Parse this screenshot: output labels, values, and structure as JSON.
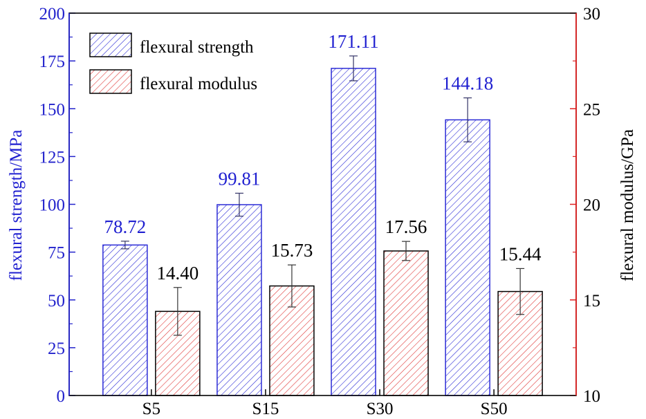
{
  "colors": {
    "left_axis": "#2222cc",
    "right_axis": "#e02020",
    "strength_hatch": "#2b2bd6",
    "modulus_hatch": "#e03a3a",
    "frame": "#000000",
    "strength_label": "#1f1fd0",
    "modulus_label": "#000000"
  },
  "chart_data": {
    "type": "bar",
    "title": "",
    "categories": [
      "S5",
      "S15",
      "S30",
      "S50"
    ],
    "left_axis": {
      "label": "flexural strength/MPa",
      "ylim": [
        0,
        200
      ],
      "ticks": [
        "0",
        "25",
        "50",
        "75",
        "100",
        "125",
        "150",
        "175",
        "200"
      ]
    },
    "right_axis": {
      "label": "flexural modulus/GPa",
      "ylim": [
        10,
        30
      ],
      "ticks": [
        "10",
        "15",
        "20",
        "25",
        "30"
      ]
    },
    "series": [
      {
        "name": "flexural strength",
        "axis": "left",
        "values": [
          78.72,
          99.81,
          171.11,
          144.18
        ],
        "labels": [
          "78.72",
          "99.81",
          "171.11",
          "144.18"
        ],
        "error": [
          2,
          6,
          6.5,
          11.5
        ],
        "hatch": "blue diagonal"
      },
      {
        "name": "flexural modulus",
        "axis": "right",
        "values": [
          14.4,
          15.73,
          17.56,
          15.44
        ],
        "labels": [
          "14.40",
          "15.73",
          "17.56",
          "15.44"
        ],
        "error": [
          1.25,
          1.1,
          0.5,
          1.2
        ],
        "hatch": "red diagonal"
      }
    ],
    "legend_position": "top-left",
    "grid": false
  }
}
